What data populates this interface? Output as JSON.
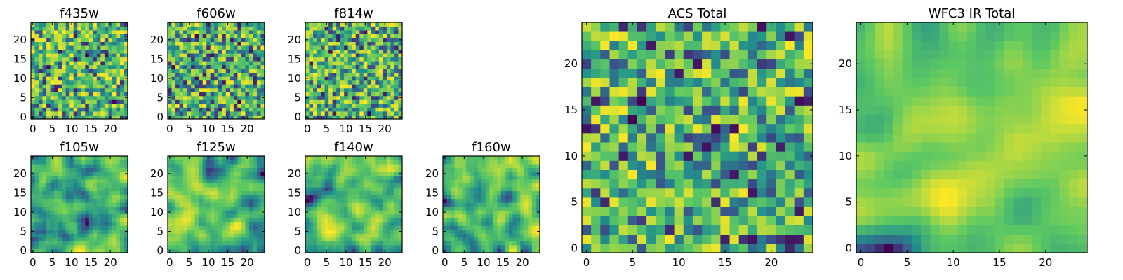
{
  "colors": {
    "colormap": "viridis",
    "stops": [
      "#440154",
      "#3b528b",
      "#21918c",
      "#5ec962",
      "#fde725"
    ],
    "frame": "#000000",
    "background": "#ffffff"
  },
  "chart_data": [
    {
      "type": "heatmap",
      "title": "f435w",
      "rows": 25,
      "cols": 25,
      "seed": 11,
      "smooth": 0,
      "bias": 0.55,
      "xticks": [
        "0",
        "5",
        "10",
        "15",
        "20"
      ],
      "yticks": [
        "0",
        "5",
        "10",
        "15",
        "20"
      ]
    },
    {
      "type": "heatmap",
      "title": "f606w",
      "rows": 25,
      "cols": 25,
      "seed": 23,
      "smooth": 0,
      "bias": 0.6,
      "xticks": [
        "0",
        "5",
        "10",
        "15",
        "20"
      ],
      "yticks": [
        "0",
        "5",
        "10",
        "15",
        "20"
      ]
    },
    {
      "type": "heatmap",
      "title": "f814w",
      "rows": 25,
      "cols": 25,
      "seed": 37,
      "smooth": 0,
      "bias": 0.55,
      "xticks": [
        "0",
        "5",
        "10",
        "15",
        "20"
      ],
      "yticks": [
        "0",
        "5",
        "10",
        "15",
        "20"
      ]
    },
    {
      "type": "heatmap",
      "title": "f105w",
      "rows": 25,
      "cols": 25,
      "seed": 41,
      "smooth": 2,
      "bias": 0.55,
      "xticks": [
        "0",
        "5",
        "10",
        "15",
        "20"
      ],
      "yticks": [
        "0",
        "5",
        "10",
        "15",
        "20"
      ]
    },
    {
      "type": "heatmap",
      "title": "f125w",
      "rows": 25,
      "cols": 25,
      "seed": 53,
      "smooth": 2,
      "bias": 0.5,
      "xticks": [
        "0",
        "5",
        "10",
        "15",
        "20"
      ],
      "yticks": [
        "0",
        "5",
        "10",
        "15",
        "20"
      ]
    },
    {
      "type": "heatmap",
      "title": "f140w",
      "rows": 25,
      "cols": 25,
      "seed": 67,
      "smooth": 2,
      "bias": 0.55,
      "xticks": [
        "0",
        "5",
        "10",
        "15",
        "20"
      ],
      "yticks": [
        "0",
        "5",
        "10",
        "15",
        "20"
      ]
    },
    {
      "type": "heatmap",
      "title": "f160w",
      "rows": 25,
      "cols": 25,
      "seed": 79,
      "smooth": 2,
      "bias": 0.55,
      "xticks": [
        "0",
        "5",
        "10",
        "15",
        "20"
      ],
      "yticks": [
        "0",
        "5",
        "10",
        "15",
        "20"
      ]
    },
    {
      "type": "heatmap",
      "title": "ACS Total",
      "rows": 25,
      "cols": 25,
      "seed": 83,
      "smooth": 0,
      "bias": 0.58,
      "xticks": [
        "0",
        "5",
        "10",
        "15",
        "20"
      ],
      "yticks": [
        "0",
        "5",
        "10",
        "15",
        "20"
      ]
    },
    {
      "type": "heatmap",
      "title": "WFC3 IR Total",
      "rows": 25,
      "cols": 25,
      "seed": 97,
      "smooth": 3,
      "bias": 0.5,
      "xticks": [
        "0",
        "5",
        "10",
        "15",
        "20"
      ],
      "yticks": [
        "0",
        "5",
        "10",
        "15",
        "20"
      ]
    }
  ]
}
